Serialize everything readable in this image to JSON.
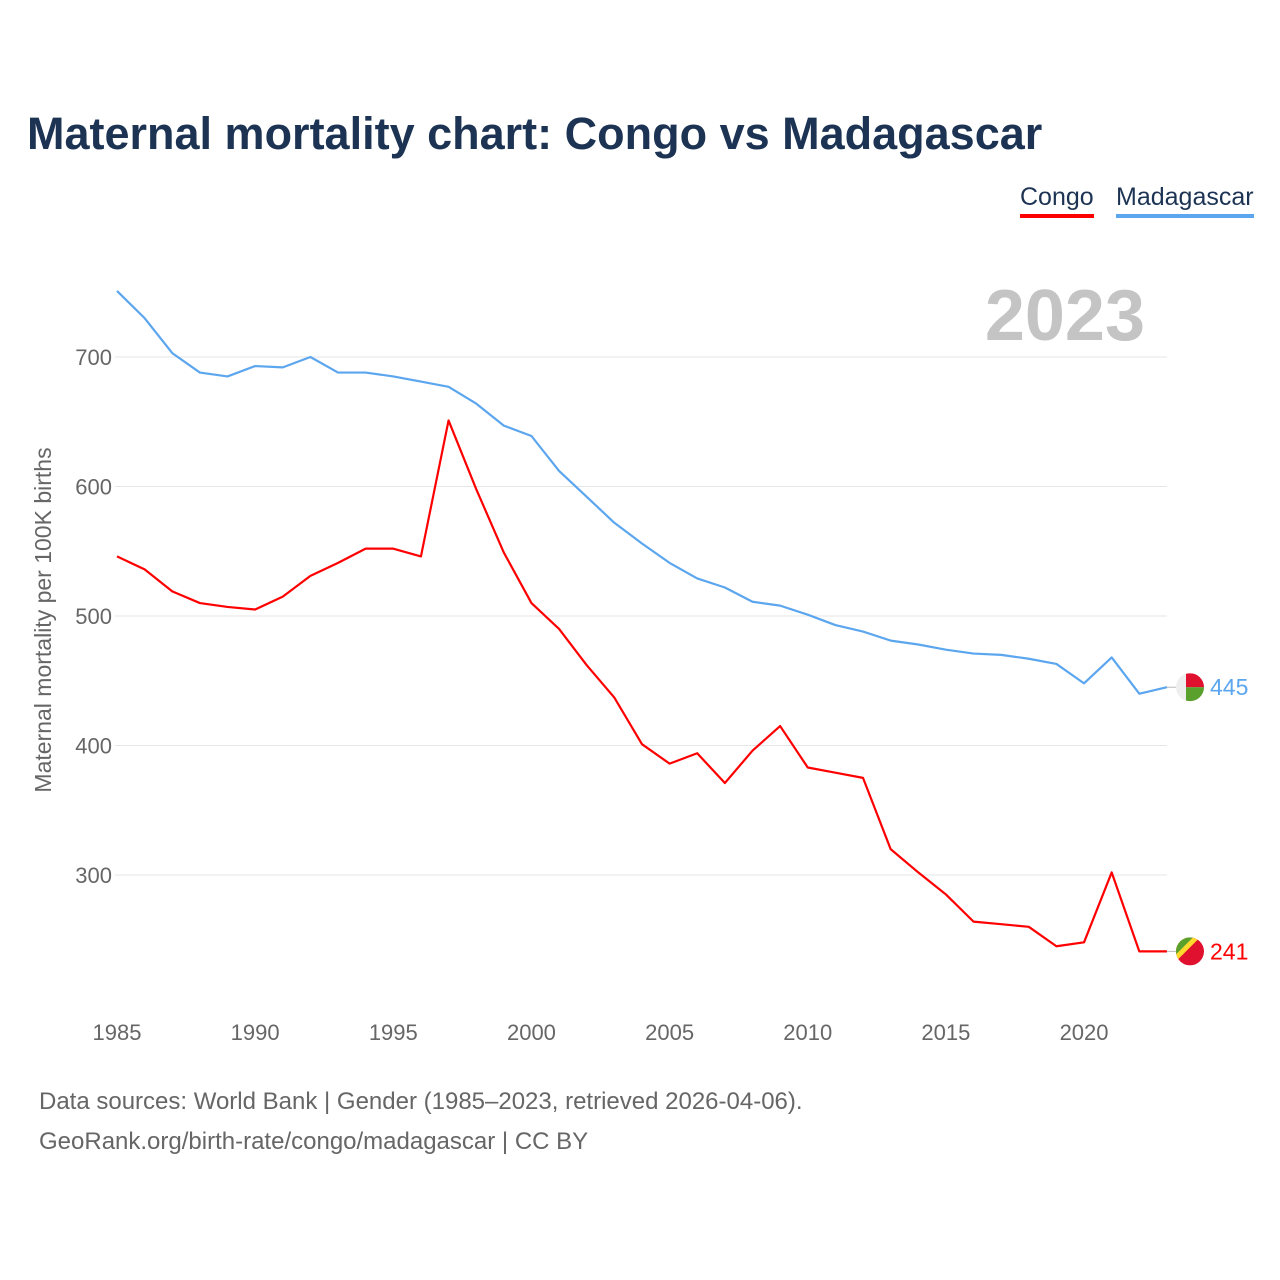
{
  "chart_data": {
    "type": "line",
    "title": "Maternal mortality chart: Congo vs Madagascar",
    "xlabel": "",
    "ylabel": "Maternal mortality per 100K births",
    "year_label": "2023",
    "x": [
      1985,
      1986,
      1987,
      1988,
      1989,
      1990,
      1991,
      1992,
      1993,
      1994,
      1995,
      1996,
      1997,
      1998,
      1999,
      2000,
      2001,
      2002,
      2003,
      2004,
      2005,
      2006,
      2007,
      2008,
      2009,
      2010,
      2011,
      2012,
      2013,
      2014,
      2015,
      2016,
      2017,
      2018,
      2019,
      2020,
      2021,
      2022,
      2023
    ],
    "series": [
      {
        "name": "Congo",
        "color": "#ff0000",
        "end_label": "241",
        "values": [
          546,
          536,
          519,
          510,
          507,
          505,
          515,
          531,
          541,
          552,
          552,
          546,
          651,
          598,
          549,
          510,
          490,
          462,
          437,
          401,
          386,
          394,
          371,
          396,
          415,
          383,
          379,
          375,
          320,
          302,
          285,
          264,
          262,
          260,
          245,
          248,
          302,
          241,
          241
        ]
      },
      {
        "name": "Madagascar",
        "color": "#5ba6ee",
        "end_label": "445",
        "values": [
          751,
          730,
          703,
          688,
          685,
          693,
          692,
          700,
          688,
          688,
          685,
          681,
          677,
          664,
          647,
          639,
          612,
          592,
          572,
          556,
          541,
          529,
          522,
          511,
          508,
          501,
          493,
          488,
          481,
          478,
          474,
          471,
          470,
          467,
          463,
          448,
          468,
          440,
          445
        ]
      }
    ],
    "xticks": [
      "1985",
      "1990",
      "1995",
      "2000",
      "2005",
      "2010",
      "2015",
      "2020"
    ],
    "yticks": [
      "300",
      "400",
      "500",
      "600",
      "700"
    ],
    "xlim": [
      1985,
      2023
    ],
    "ylim": [
      210,
      780
    ],
    "grid": true,
    "legend_placement": "top-right"
  },
  "footer": {
    "line1": "Data sources: World Bank | Gender (1985–2023, retrieved 2026-04-06).",
    "line2": "GeoRank.org/birth-rate/congo/madagascar | CC BY"
  }
}
